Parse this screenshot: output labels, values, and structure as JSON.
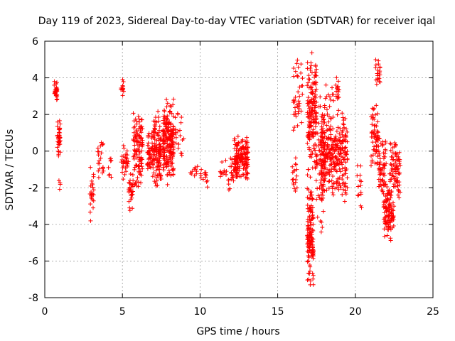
{
  "chart_data": {
    "type": "scatter",
    "title": "Day 119 of 2023, Sidereal Day-to-day VTEC variation (SDTVAR) for receiver iqal",
    "xlabel": "GPS time / hours",
    "ylabel": "SDTVAR / TECUs",
    "xlim": [
      0,
      25
    ],
    "ylim": [
      -8,
      6
    ],
    "xticks": [
      0,
      5,
      10,
      15,
      20,
      25
    ],
    "yticks": [
      -8,
      -6,
      -4,
      -2,
      0,
      2,
      4,
      6
    ],
    "grid": true,
    "marker": "+",
    "marker_color": "#ff0000",
    "clusters": [
      {
        "x": [
          0.6,
          0.8
        ],
        "y": [
          2.6,
          4.0
        ],
        "n": 30
      },
      {
        "x": [
          0.8,
          1.0
        ],
        "y": [
          -0.5,
          1.8
        ],
        "n": 40
      },
      {
        "x": [
          0.9,
          1.0
        ],
        "y": [
          -2.6,
          -1.2
        ],
        "n": 4
      },
      {
        "x": [
          2.9,
          3.2
        ],
        "y": [
          -4.1,
          -0.7
        ],
        "n": 24
      },
      {
        "x": [
          3.4,
          3.8
        ],
        "y": [
          -1.8,
          0.8
        ],
        "n": 22
      },
      {
        "x": [
          4.1,
          4.3
        ],
        "y": [
          -1.7,
          0.2
        ],
        "n": 8
      },
      {
        "x": [
          4.9,
          5.1
        ],
        "y": [
          2.8,
          4.0
        ],
        "n": 12
      },
      {
        "x": [
          4.9,
          5.4
        ],
        "y": [
          -2.0,
          0.6
        ],
        "n": 30
      },
      {
        "x": [
          5.4,
          5.7
        ],
        "y": [
          -3.6,
          -0.8
        ],
        "n": 30
      },
      {
        "x": [
          5.7,
          6.3
        ],
        "y": [
          -2.3,
          2.4
        ],
        "n": 110
      },
      {
        "x": [
          6.6,
          7.0
        ],
        "y": [
          -1.5,
          1.5
        ],
        "n": 50
      },
      {
        "x": [
          7.0,
          7.5
        ],
        "y": [
          -2.3,
          2.3
        ],
        "n": 120
      },
      {
        "x": [
          7.6,
          8.3
        ],
        "y": [
          -2.0,
          3.0
        ],
        "n": 200
      },
      {
        "x": [
          8.4,
          9.0
        ],
        "y": [
          -1.2,
          2.3
        ],
        "n": 20
      },
      {
        "x": [
          9.3,
          9.9
        ],
        "y": [
          -1.4,
          -0.7
        ],
        "n": 10
      },
      {
        "x": [
          10.0,
          10.5
        ],
        "y": [
          -2.1,
          -0.5
        ],
        "n": 14
      },
      {
        "x": [
          11.3,
          11.7
        ],
        "y": [
          -1.5,
          -0.4
        ],
        "n": 12
      },
      {
        "x": [
          11.8,
          12.2
        ],
        "y": [
          -2.8,
          -0.2
        ],
        "n": 20
      },
      {
        "x": [
          12.2,
          13.1
        ],
        "y": [
          -1.7,
          0.9
        ],
        "n": 170
      },
      {
        "x": [
          15.9,
          16.3
        ],
        "y": [
          -2.9,
          0.0
        ],
        "n": 18
      },
      {
        "x": [
          16.0,
          16.6
        ],
        "y": [
          0.5,
          5.3
        ],
        "n": 40
      },
      {
        "x": [
          16.9,
          17.3
        ],
        "y": [
          -7.5,
          -1.5
        ],
        "n": 140
      },
      {
        "x": [
          16.9,
          17.5
        ],
        "y": [
          -1.5,
          5.7
        ],
        "n": 160
      },
      {
        "x": [
          17.4,
          18.0
        ],
        "y": [
          -4.7,
          3.5
        ],
        "n": 70
      },
      {
        "x": [
          17.8,
          19.5
        ],
        "y": [
          -2.8,
          2.2
        ],
        "n": 320
      },
      {
        "x": [
          18.0,
          19.0
        ],
        "y": [
          2.0,
          4.1
        ],
        "n": 30
      },
      {
        "x": [
          20.1,
          20.4
        ],
        "y": [
          -3.3,
          -0.5
        ],
        "n": 14
      },
      {
        "x": [
          21.0,
          21.5
        ],
        "y": [
          -1.2,
          3.0
        ],
        "n": 60
      },
      {
        "x": [
          21.3,
          21.6
        ],
        "y": [
          3.4,
          5.3
        ],
        "n": 20
      },
      {
        "x": [
          21.5,
          22.0
        ],
        "y": [
          -2.9,
          1.2
        ],
        "n": 60
      },
      {
        "x": [
          21.8,
          22.5
        ],
        "y": [
          -5.1,
          -1.4
        ],
        "n": 110
      },
      {
        "x": [
          22.2,
          22.9
        ],
        "y": [
          -2.7,
          0.8
        ],
        "n": 80
      }
    ]
  }
}
